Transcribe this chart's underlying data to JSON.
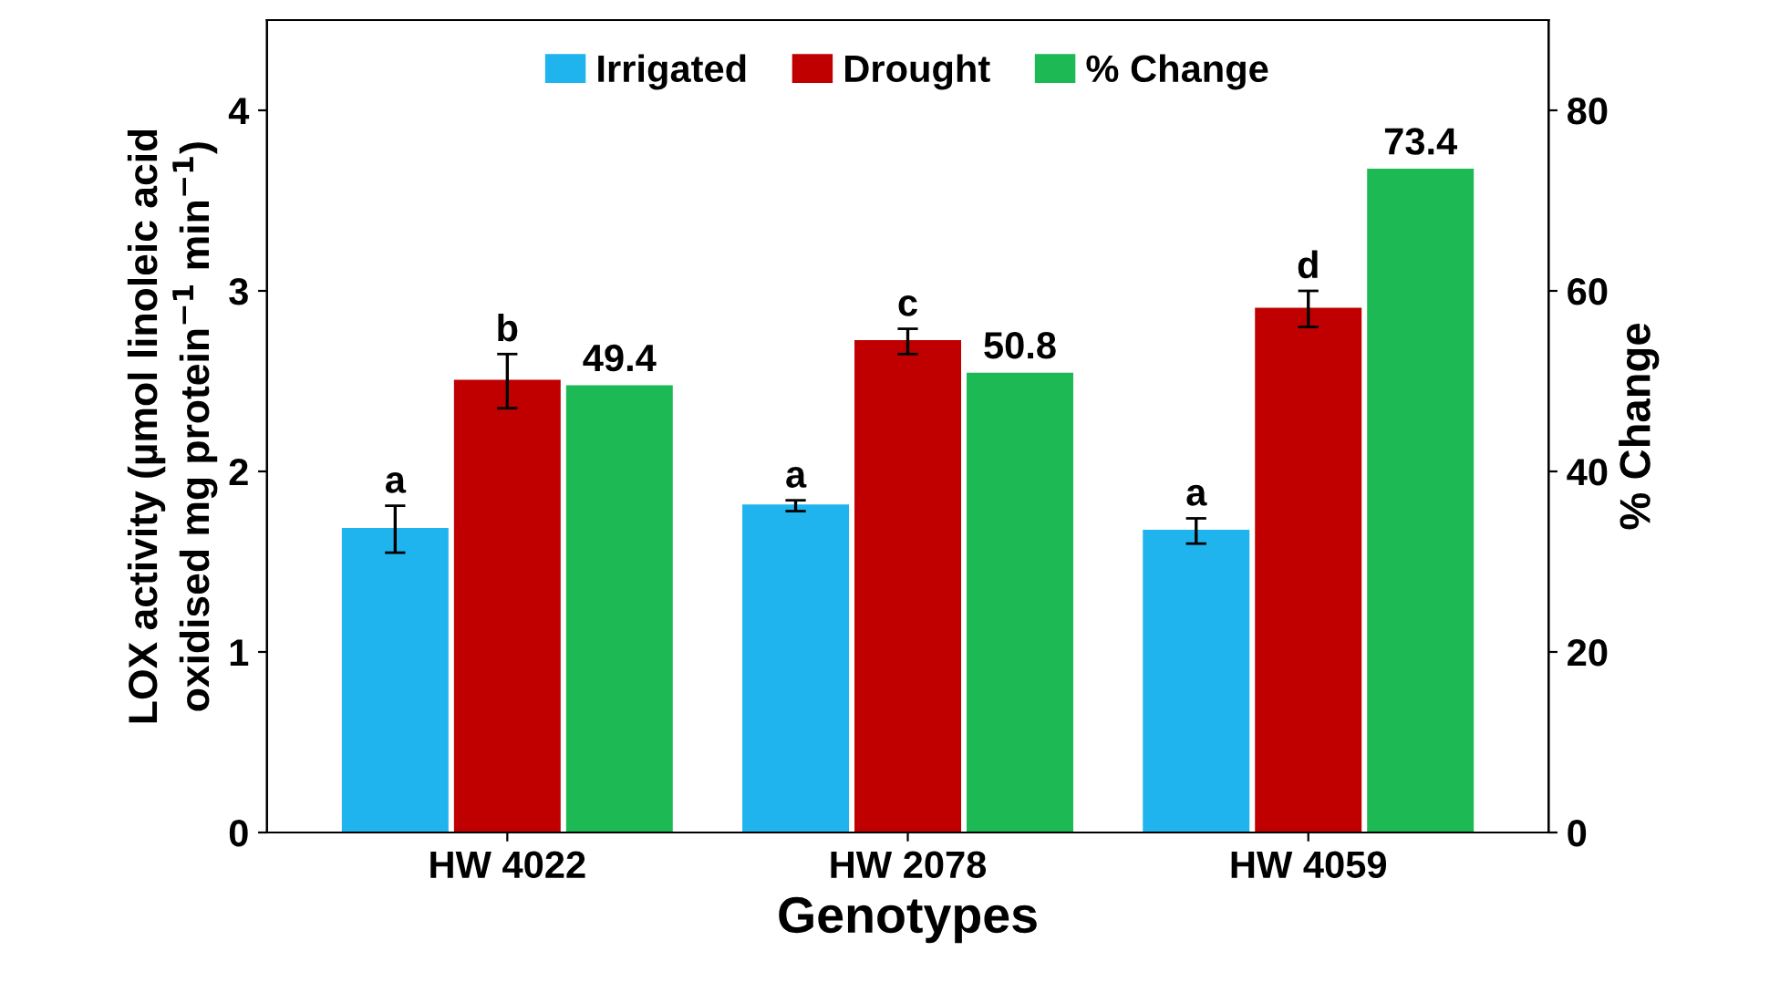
{
  "chart_data": {
    "type": "bar",
    "xlabel": "Genotypes",
    "ylabel": "LOX activity (µmol linoleic acid\noxidised mg protein$^{−1}$ min$^{−1}$)",
    "y2label": "% Change",
    "categories": [
      "HW 4022",
      "HW 2078",
      "HW 4059"
    ],
    "series": [
      {
        "name": "Irrigated",
        "color": "#1fb4ee",
        "values": [
          1.68,
          1.81,
          1.67
        ],
        "errors": [
          0.13,
          0.03,
          0.07
        ]
      },
      {
        "name": "Drought",
        "color": "#c00000",
        "values": [
          2.5,
          2.72,
          2.9
        ],
        "errors": [
          0.15,
          0.07,
          0.1
        ]
      },
      {
        "name": "% Change",
        "color": "#1db954",
        "axis": "y2",
        "values": [
          49.4,
          50.8,
          73.4
        ],
        "value_labels": [
          "49.4",
          "50.8",
          "73.4"
        ]
      }
    ],
    "ylim": [
      0,
      4.5
    ],
    "yticks": [
      0,
      1,
      2,
      3,
      4
    ],
    "y2lim": [
      0,
      90
    ],
    "y2ticks": [
      0,
      20,
      40,
      60,
      80
    ],
    "annotations": [
      "a",
      "b",
      "a",
      "c",
      "a",
      "d"
    ],
    "legend": "top",
    "grid": false
  }
}
